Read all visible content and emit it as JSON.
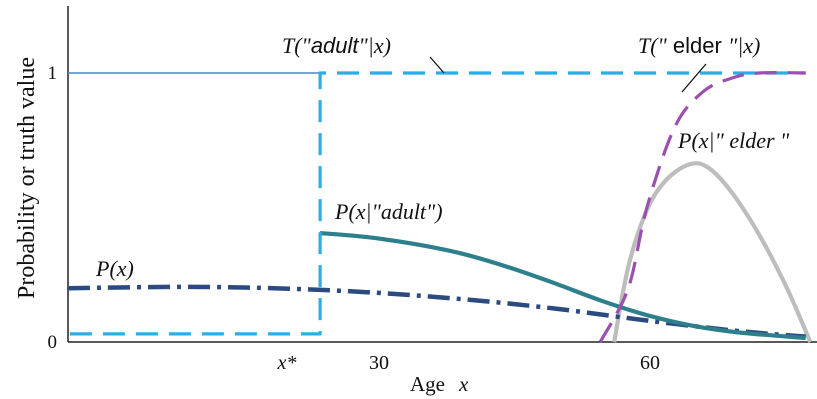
{
  "chart_data": {
    "type": "line",
    "xlabel": "Age",
    "xlabel_var": "x",
    "ylabel": "Probability or truth value",
    "x_ticks": [
      {
        "x": 20,
        "label": "x*"
      },
      {
        "x": 30,
        "label": "30"
      },
      {
        "x": 60,
        "label": "60"
      }
    ],
    "y_ticks": [
      {
        "y": 0,
        "label": "0"
      },
      {
        "y": 1,
        "label": "1"
      }
    ],
    "xlim": [
      -7,
      73
    ],
    "ylim": [
      0,
      1.22
    ],
    "series": [
      {
        "id": "adult_truth",
        "name": "T(\"adult\"|x)",
        "style": "dashed",
        "color": "#29aee6",
        "points": [
          [
            -6.8,
            0.03
          ],
          [
            20,
            0.03
          ],
          [
            20,
            1
          ],
          [
            72,
            1
          ]
        ]
      },
      {
        "id": "x_le_xstar",
        "style": "solid-thin",
        "color": "#4a86c8",
        "points": [
          [
            -7,
            1
          ],
          [
            20,
            1
          ]
        ]
      },
      {
        "id": "elder_truth",
        "name": "T(\" elder \"|x)",
        "style": "dashed",
        "color": "#9b4fb0",
        "points": [
          [
            50,
            0
          ],
          [
            53,
            0.2
          ],
          [
            55,
            0.5
          ],
          [
            58,
            0.8
          ],
          [
            61,
            0.93
          ],
          [
            64,
            0.98
          ],
          [
            67,
            1
          ],
          [
            72,
            1
          ]
        ]
      },
      {
        "id": "p_x",
        "name": "P(x)",
        "style": "dash-dot",
        "color": "#2b4a7f",
        "points": [
          [
            -7,
            0.2
          ],
          [
            5,
            0.205
          ],
          [
            15,
            0.2
          ],
          [
            25,
            0.185
          ],
          [
            35,
            0.16
          ],
          [
            45,
            0.125
          ],
          [
            55,
            0.08
          ],
          [
            65,
            0.04
          ],
          [
            72,
            0.02
          ]
        ]
      },
      {
        "id": "p_x_adult",
        "name": "P(x|\"adult\")",
        "style": "solid",
        "color": "#2e7f8c",
        "points": [
          [
            20,
            0.405
          ],
          [
            25,
            0.39
          ],
          [
            30,
            0.365
          ],
          [
            35,
            0.33
          ],
          [
            40,
            0.28
          ],
          [
            45,
            0.22
          ],
          [
            50,
            0.155
          ],
          [
            55,
            0.1
          ],
          [
            60,
            0.06
          ],
          [
            65,
            0.035
          ],
          [
            72,
            0.015
          ]
        ]
      },
      {
        "id": "p_x_elder",
        "name": "P(x|\" elder \")",
        "style": "solid",
        "color": "#bdbdbd",
        "points": [
          [
            51.5,
            0
          ],
          [
            53,
            0.28
          ],
          [
            55,
            0.49
          ],
          [
            57,
            0.6
          ],
          [
            59.5,
            0.66
          ],
          [
            61.5,
            0.65
          ],
          [
            64,
            0.56
          ],
          [
            67,
            0.4
          ],
          [
            70,
            0.2
          ],
          [
            72.5,
            0
          ]
        ]
      }
    ],
    "annotations": [
      {
        "text_prefix": "T(\"",
        "text_word": "adult",
        "text_suffix": "\"|x)"
      },
      {
        "text_prefix": "T(\"",
        "text_word": " elder ",
        "text_suffix": "\"|x)"
      },
      {
        "text": "P(x)"
      },
      {
        "text": "P(x|\"adult\")"
      },
      {
        "text": "P(x|\" elder \""
      }
    ]
  }
}
